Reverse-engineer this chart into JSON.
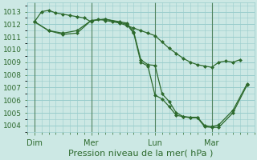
{
  "background_color": "#cce8e4",
  "plot_bg_color": "#cce8e4",
  "grid_color": "#99cccc",
  "line_color": "#2d6a2d",
  "marker_color": "#2d6a2d",
  "vline_color": "#336633",
  "xlabel": "Pression niveau de la mer( hPa )",
  "xlabel_fontsize": 8,
  "ylim": [
    1003.5,
    1013.7
  ],
  "yticks": [
    1004,
    1005,
    1006,
    1007,
    1008,
    1009,
    1010,
    1011,
    1012,
    1013
  ],
  "xtick_labels": [
    "Dim",
    "Mer",
    "Lun",
    "Mar"
  ],
  "xtick_positions": [
    0,
    8,
    17,
    25
  ],
  "vline_positions": [
    0,
    8,
    17,
    25
  ],
  "xlim": [
    -1,
    31
  ],
  "line1_x": [
    0,
    1,
    2,
    3,
    4,
    5,
    6,
    7,
    8,
    9,
    10,
    11,
    12,
    13,
    14,
    15,
    16,
    17,
    18,
    19,
    20,
    21,
    22,
    23,
    24,
    25,
    26,
    27,
    28,
    29
  ],
  "line1_y": [
    1012.2,
    1013.0,
    1013.1,
    1012.9,
    1012.8,
    1012.7,
    1012.6,
    1012.5,
    1012.2,
    1012.4,
    1012.3,
    1012.2,
    1012.1,
    1011.9,
    1011.7,
    1011.5,
    1011.3,
    1011.1,
    1010.6,
    1010.1,
    1009.7,
    1009.3,
    1009.0,
    1008.8,
    1008.7,
    1008.6,
    1009.0,
    1009.1,
    1009.0,
    1009.2
  ],
  "line2_x": [
    0,
    2,
    4,
    6,
    8,
    10,
    12,
    13,
    14,
    15,
    16,
    17,
    18,
    19,
    20,
    21,
    22,
    23,
    24,
    25,
    26,
    28,
    30
  ],
  "line2_y": [
    1012.2,
    1011.5,
    1011.3,
    1011.5,
    1012.3,
    1012.4,
    1012.2,
    1012.1,
    1011.4,
    1009.2,
    1008.8,
    1008.75,
    1006.5,
    1005.9,
    1005.0,
    1004.7,
    1004.6,
    1004.6,
    1003.9,
    1003.85,
    1003.85,
    1005.0,
    1007.2
  ],
  "line3_x": [
    0,
    2,
    4,
    6,
    8,
    10,
    12,
    13,
    14,
    15,
    16,
    17,
    18,
    19,
    20,
    21,
    22,
    23,
    24,
    25,
    26,
    28,
    30
  ],
  "line3_y": [
    1012.2,
    1011.5,
    1011.2,
    1011.3,
    1012.3,
    1012.4,
    1012.15,
    1012.0,
    1011.3,
    1009.0,
    1008.7,
    1006.4,
    1006.1,
    1005.5,
    1004.8,
    1004.7,
    1004.65,
    1004.65,
    1004.0,
    1003.9,
    1004.05,
    1005.2,
    1007.3
  ]
}
